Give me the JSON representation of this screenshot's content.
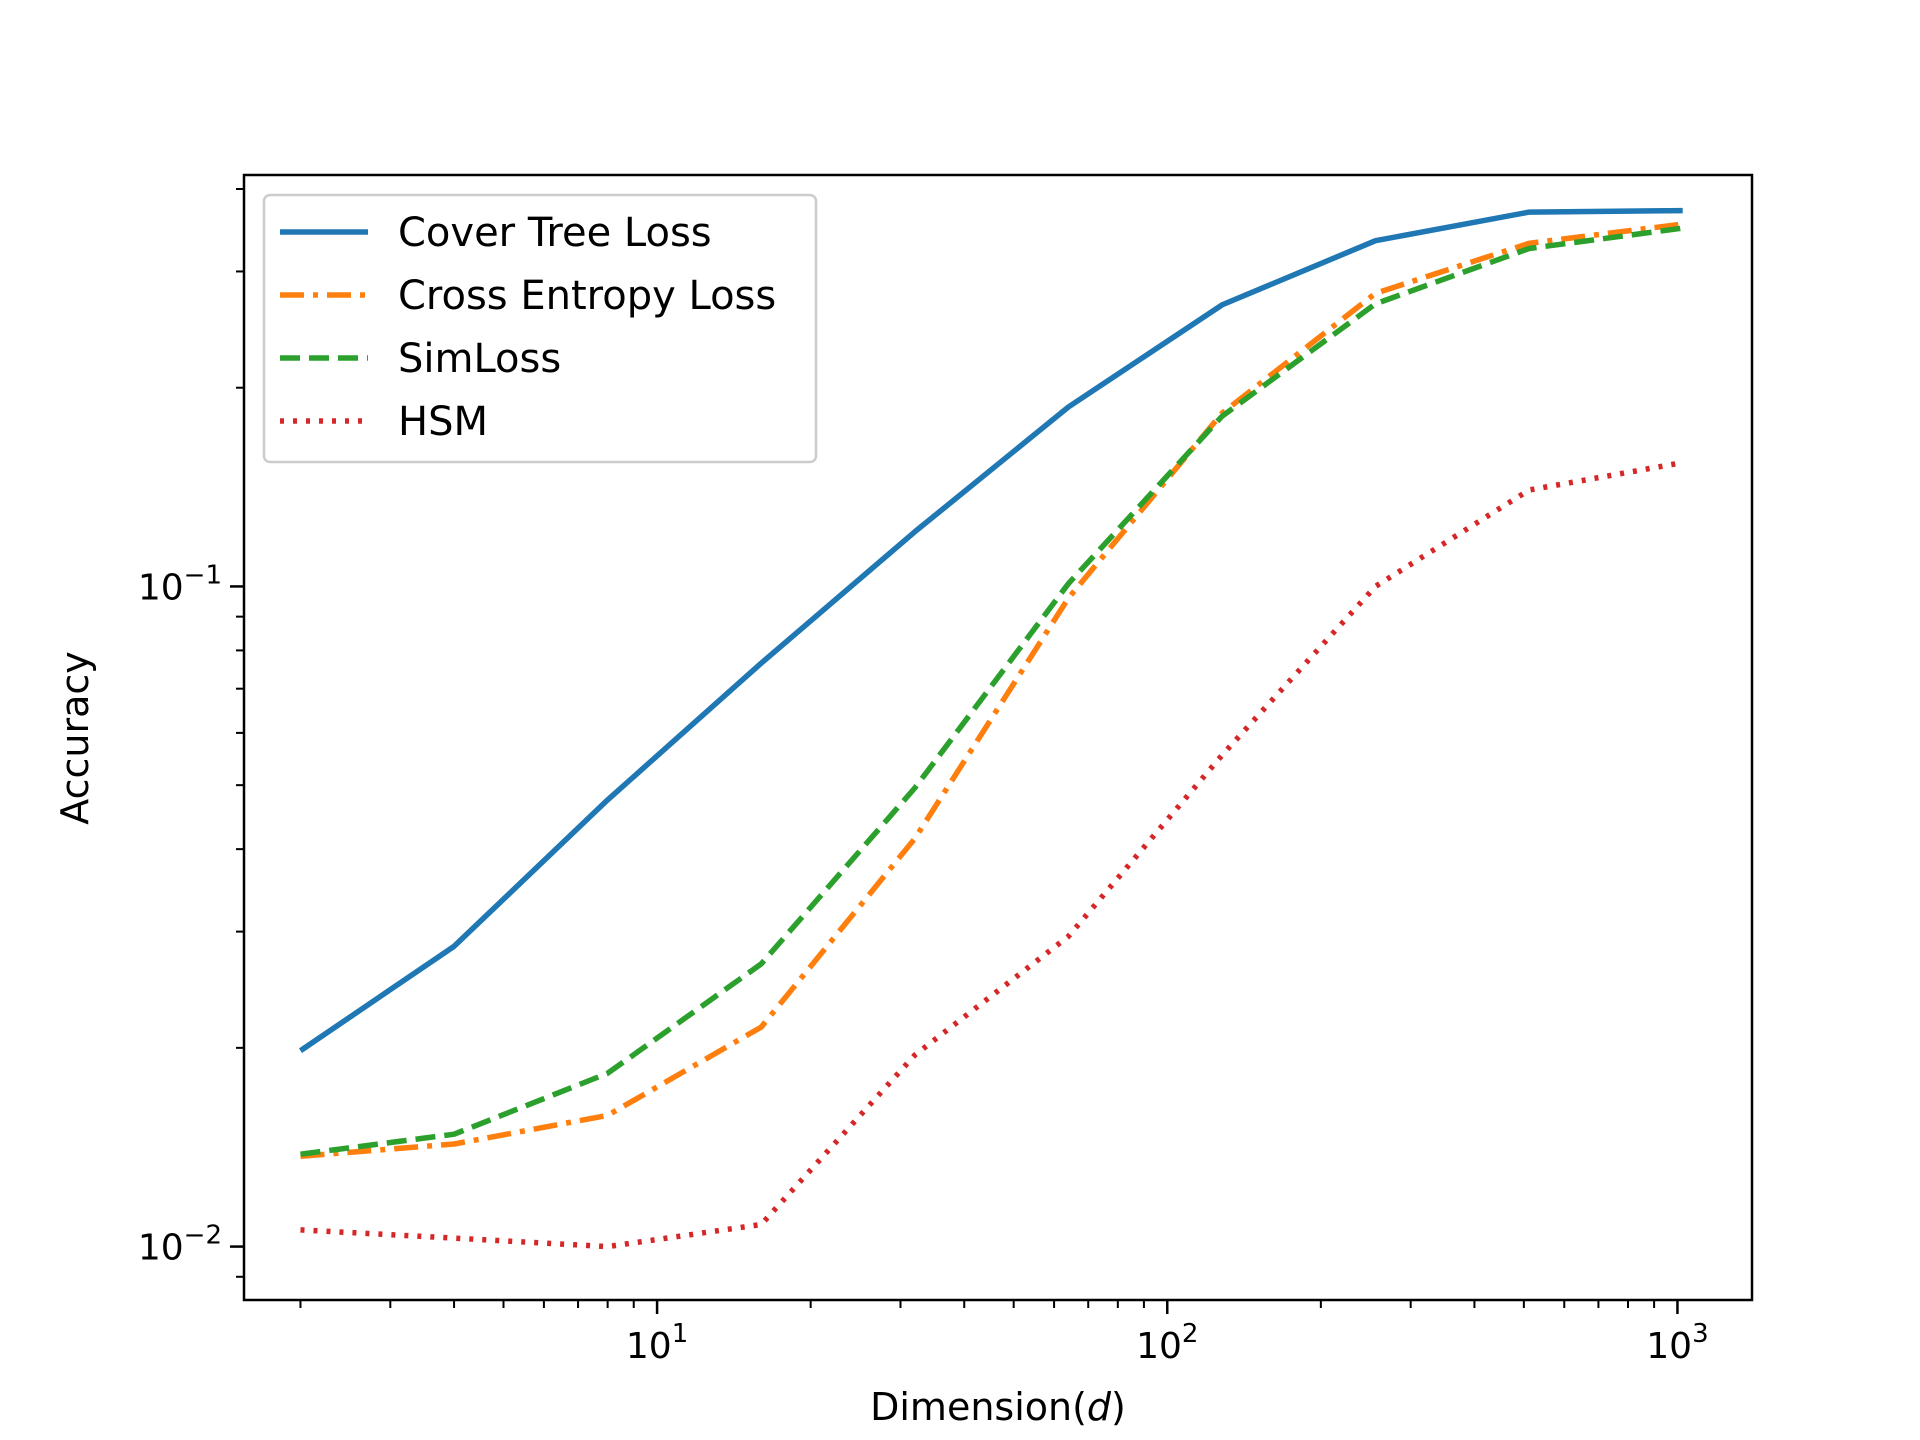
{
  "chart_data": {
    "type": "line",
    "title": "",
    "xlabel": "Dimension(d)",
    "xlabel_parts": {
      "prefix": "Dimension(",
      "var": "d",
      "suffix": ")"
    },
    "ylabel": "Accuracy",
    "x_scale": "log",
    "y_scale": "log",
    "xlim": [
      1.55,
      1400
    ],
    "ylim": [
      0.0083,
      0.42
    ],
    "x_major_ticks": [
      {
        "value": 10,
        "base": "10",
        "exp": "1"
      },
      {
        "value": 100,
        "base": "10",
        "exp": "2"
      },
      {
        "value": 1000,
        "base": "10",
        "exp": "3"
      }
    ],
    "y_major_ticks": [
      {
        "value": 0.01,
        "base": "10",
        "exp": "−2"
      },
      {
        "value": 0.1,
        "base": "10",
        "exp": "−1"
      }
    ],
    "grid": false,
    "legend_position": "top-left",
    "x": [
      2,
      4,
      8,
      16,
      32,
      64,
      128,
      256,
      512,
      1024
    ],
    "series": [
      {
        "name": "Cover Tree Loss",
        "color": "#1f77b4",
        "dash": "solid",
        "values": [
          0.0198,
          0.0285,
          0.0475,
          0.0765,
          0.121,
          0.187,
          0.267,
          0.334,
          0.369,
          0.371
        ]
      },
      {
        "name": "Cross Entropy Loss",
        "color": "#ff7f0e",
        "dash": "dashdot",
        "values": [
          0.0137,
          0.0143,
          0.0158,
          0.0215,
          0.0415,
          0.096,
          0.183,
          0.278,
          0.331,
          0.354
        ]
      },
      {
        "name": "SimLoss",
        "color": "#2ca02c",
        "dash": "dashed",
        "values": [
          0.0138,
          0.0148,
          0.0183,
          0.0268,
          0.0495,
          0.101,
          0.181,
          0.268,
          0.325,
          0.349
        ]
      },
      {
        "name": "HSM",
        "color": "#d62728",
        "dash": "dotted",
        "values": [
          0.0106,
          0.0103,
          0.01,
          0.0108,
          0.0195,
          0.0295,
          0.0555,
          0.1,
          0.14,
          0.154
        ]
      }
    ]
  }
}
